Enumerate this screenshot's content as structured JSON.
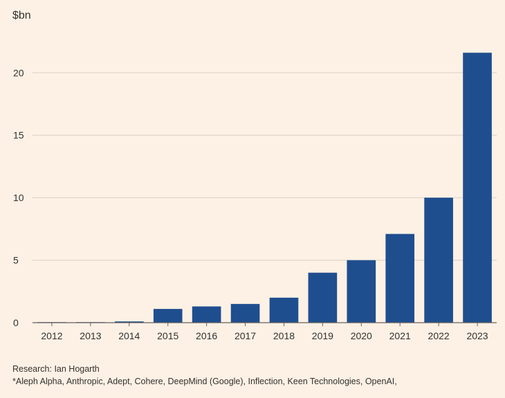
{
  "chart_data": {
    "type": "bar",
    "unit_label": "$bn",
    "categories": [
      "2012",
      "2013",
      "2014",
      "2015",
      "2016",
      "2017",
      "2018",
      "2019",
      "2020",
      "2021",
      "2022",
      "2023"
    ],
    "values": [
      0.02,
      0.02,
      0.1,
      1.1,
      1.3,
      1.5,
      2.0,
      4.0,
      5.0,
      7.1,
      10.0,
      21.6
    ],
    "ylim": [
      0,
      23
    ],
    "yticks": [
      0,
      5,
      10,
      15,
      20
    ],
    "grid": true,
    "bar_color": "#1f4e8f",
    "grid_color": "#d9cfc3",
    "axis_color": "#66605c",
    "text_color": "#33302e",
    "background": "#fdf1e5"
  },
  "source": "Research: Ian Hogarth",
  "footnote": "*Aleph Alpha, Anthropic, Adept, Cohere, DeepMind (Google), Inflection, Keen Technologies, OpenAI,"
}
